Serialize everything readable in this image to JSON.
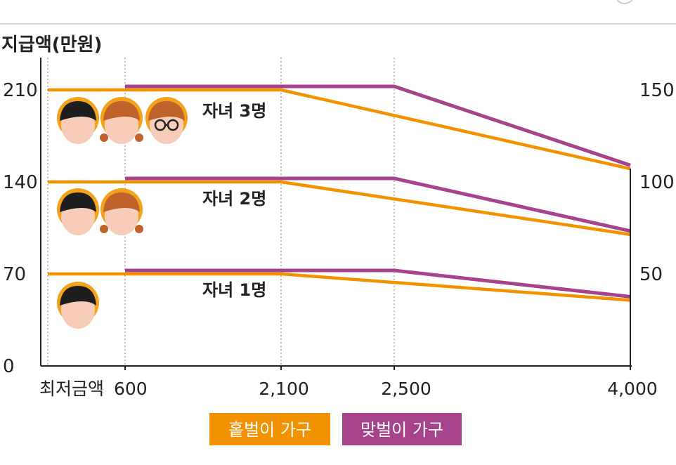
{
  "chart_data": {
    "type": "line",
    "ylabel": "지급액(만원)",
    "x_tick_labels": [
      "최저금액",
      "600",
      "2,100",
      "2,500",
      "4,000"
    ],
    "x_ticks": [
      600,
      2100,
      2500,
      4000
    ],
    "y_ticks": [
      0,
      70,
      140,
      210
    ],
    "y_tick_labels": [
      "0",
      "70",
      "140",
      "210"
    ],
    "right_labels": [
      "150",
      "100",
      "50"
    ],
    "ylim": [
      0,
      230
    ],
    "groups": [
      {
        "label": "자녀 3명",
        "single": {
          "x": [
            "최저금액",
            2100,
            4000
          ],
          "y": [
            210,
            210,
            150
          ]
        },
        "dual": {
          "x": [
            600,
            2500,
            4000
          ],
          "y": [
            210,
            210,
            150
          ]
        }
      },
      {
        "label": "자녀 2명",
        "single": {
          "x": [
            "최저금액",
            2100,
            4000
          ],
          "y": [
            140,
            140,
            100
          ]
        },
        "dual": {
          "x": [
            600,
            2500,
            4000
          ],
          "y": [
            140,
            140,
            100
          ]
        }
      },
      {
        "label": "자녀 1명",
        "single": {
          "x": [
            "최저금액",
            2100,
            4000
          ],
          "y": [
            70,
            70,
            50
          ]
        },
        "dual": {
          "x": [
            600,
            2500,
            4000
          ],
          "y": [
            70,
            70,
            50
          ]
        }
      }
    ],
    "legend": [
      {
        "label": "홑벌이 가구",
        "color": "#f39200"
      },
      {
        "label": "맞벌이 가구",
        "color": "#a6438c"
      }
    ],
    "legend_position": "bottom"
  },
  "colors": {
    "single": "#f39200",
    "dual": "#a6438c",
    "axis": "#222222",
    "grid": "#9a9a9a"
  }
}
